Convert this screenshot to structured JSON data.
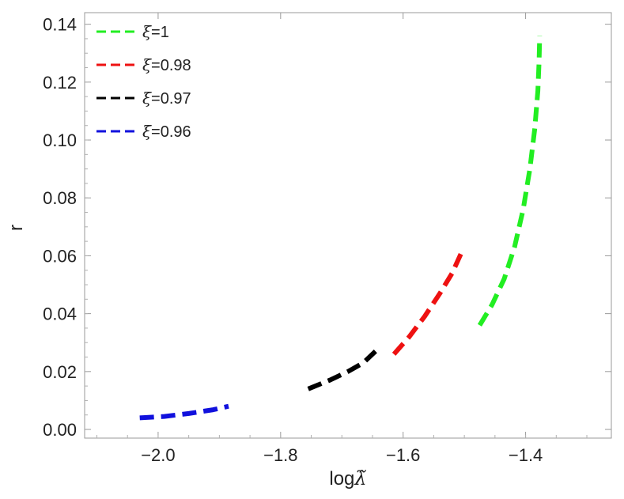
{
  "chart_data": {
    "type": "line",
    "title": "",
    "xlabel": "log",
    "xlabel_symbol": "λ̃",
    "ylabel": "r",
    "xlim": [
      -2.12,
      -1.26
    ],
    "ylim": [
      -0.003,
      0.144
    ],
    "xticks": [
      -2.0,
      -1.8,
      -1.6,
      -1.4
    ],
    "xtick_labels": [
      "−2.0",
      "−1.8",
      "−1.6",
      "−1.4"
    ],
    "yticks": [
      0.0,
      0.02,
      0.04,
      0.06,
      0.08,
      0.1,
      0.12,
      0.14
    ],
    "ytick_labels": [
      "0.00",
      "0.02",
      "0.04",
      "0.06",
      "0.08",
      "0.10",
      "0.12",
      "0.14"
    ],
    "grid": false,
    "legend_position": "top-left",
    "line_style": "dashed",
    "series": [
      {
        "name": "ξ=1",
        "name_symbol": "ξ",
        "name_value": "=1",
        "color": "#22ee22",
        "x": [
          -1.475,
          -1.455,
          -1.435,
          -1.418,
          -1.404,
          -1.393,
          -1.385,
          -1.38,
          -1.378,
          -1.377
        ],
        "y": [
          0.036,
          0.043,
          0.052,
          0.063,
          0.076,
          0.09,
          0.104,
          0.117,
          0.127,
          0.136
        ]
      },
      {
        "name": "ξ=0.98",
        "name_symbol": "ξ",
        "name_value": "=0.98",
        "color": "#ee1111",
        "x": [
          -1.615,
          -1.59,
          -1.565,
          -1.54,
          -1.52,
          -1.505
        ],
        "y": [
          0.026,
          0.032,
          0.039,
          0.047,
          0.054,
          0.061
        ]
      },
      {
        "name": "ξ=0.97",
        "name_symbol": "ξ",
        "name_value": "=0.97",
        "color": "#000000",
        "x": [
          -1.755,
          -1.72,
          -1.69,
          -1.665,
          -1.645
        ],
        "y": [
          0.014,
          0.017,
          0.02,
          0.023,
          0.027
        ]
      },
      {
        "name": "ξ=0.96",
        "name_symbol": "ξ",
        "name_value": "=0.96",
        "color": "#1111dd",
        "x": [
          -2.03,
          -1.99,
          -1.95,
          -1.91,
          -1.885
        ],
        "y": [
          0.004,
          0.0045,
          0.0055,
          0.0068,
          0.008
        ]
      }
    ]
  }
}
